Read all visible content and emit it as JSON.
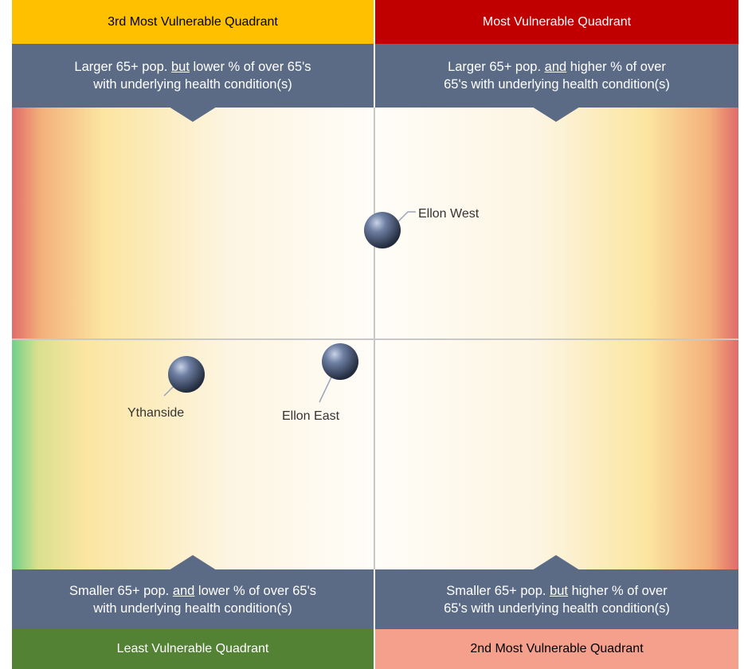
{
  "quadrants": [
    {
      "heading": "3rd Most Vulnerable Quadrant",
      "desc": {
        "pre": "Larger 65+ pop. ",
        "em": "but",
        "post": " lower % of over 65's",
        "line2": "with underlying health condition(s)"
      }
    },
    {
      "heading": "Most Vulnerable Quadrant",
      "desc": {
        "pre": "Larger 65+ pop. ",
        "em": "and",
        "post": " higher % of over",
        "line2": "65's with underlying health condition(s)"
      }
    },
    {
      "heading": "Least Vulnerable Quadrant",
      "desc": {
        "pre": "Smaller 65+ pop. ",
        "em": "and",
        "post": " lower % of over 65's",
        "line2": "with underlying health condition(s)"
      }
    },
    {
      "heading": "2nd Most Vulnerable Quadrant",
      "desc": {
        "pre": "Smaller 65+ pop. ",
        "em": "but",
        "post": " higher % of over",
        "line2": "65's with underlying health condition(s)"
      }
    }
  ],
  "points": [
    {
      "label": "Ellon West"
    },
    {
      "label": "Ythanside"
    },
    {
      "label": "Ellon East"
    }
  ]
}
